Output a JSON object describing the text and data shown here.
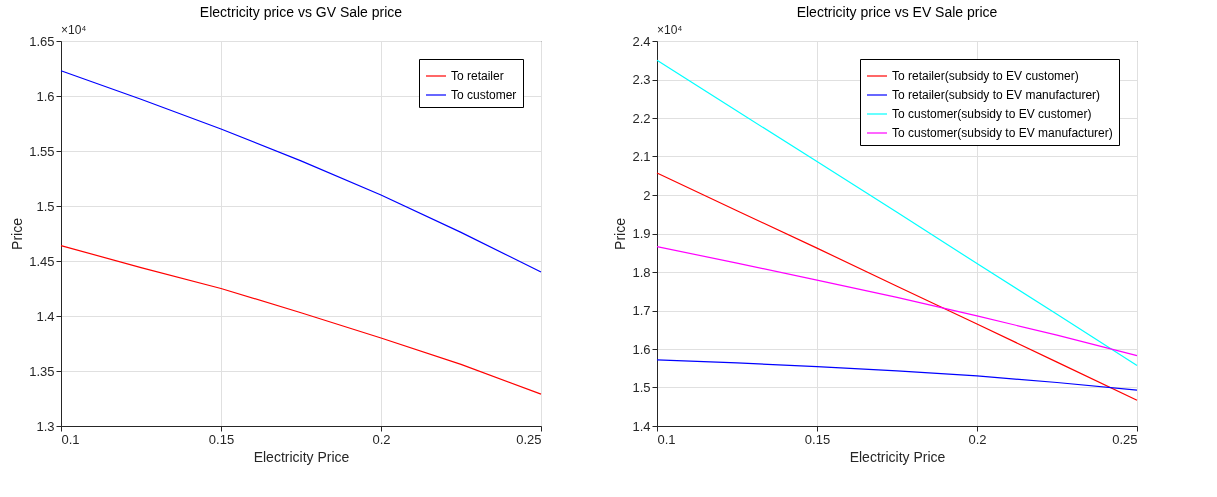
{
  "chart_data": [
    {
      "type": "line",
      "title": "Electricity price vs GV Sale price",
      "xlabel": "Electricity Price",
      "ylabel": "Price",
      "annotations": [
        "×10⁴"
      ],
      "x": [
        0.1,
        0.125,
        0.15,
        0.175,
        0.2,
        0.225,
        0.25
      ],
      "series": [
        {
          "name": "To retailer",
          "color": "#ff0000",
          "values": [
            1.464,
            1.444,
            1.425,
            1.403,
            1.38,
            1.356,
            1.329
          ]
        },
        {
          "name": "To customer",
          "color": "#0000ff",
          "values": [
            1.623,
            1.597,
            1.57,
            1.541,
            1.51,
            1.476,
            1.44
          ]
        }
      ],
      "xlim": [
        0.1,
        0.25
      ],
      "xticks": [
        0.1,
        0.15,
        0.2,
        0.25
      ],
      "ylim": [
        1.3,
        1.65
      ],
      "yticks": [
        1.3,
        1.35,
        1.4,
        1.45,
        1.5,
        1.55,
        1.6,
        1.65
      ],
      "grid": true,
      "legend": "top right",
      "marker": "none",
      "line_style": "solid"
    },
    {
      "type": "line",
      "title": "Electricity price vs EV Sale price",
      "xlabel": "Electricity Price",
      "ylabel": "Price",
      "annotations": [
        "×10⁴"
      ],
      "x": [
        0.1,
        0.125,
        0.15,
        0.175,
        0.2,
        0.225,
        0.25
      ],
      "series": [
        {
          "name": "To retailer(subsidy to EV customer)",
          "color": "#ff0000",
          "values": [
            2.057,
            1.959,
            1.862,
            1.763,
            1.665,
            1.566,
            1.467
          ]
        },
        {
          "name": "To retailer(subsidy to EV manufacturer)",
          "color": "#0000ff",
          "values": [
            1.572,
            1.564,
            1.554,
            1.543,
            1.53,
            1.513,
            1.493
          ]
        },
        {
          "name": "To customer(subsidy to EV customer)",
          "color": "#00ffff",
          "values": [
            2.35,
            2.218,
            2.087,
            1.955,
            1.822,
            1.69,
            1.557
          ]
        },
        {
          "name": "To customer(subsidy to EV manufacturer)",
          "color": "#ff00ff",
          "values": [
            1.866,
            1.823,
            1.779,
            1.734,
            1.686,
            1.636,
            1.583
          ]
        }
      ],
      "xlim": [
        0.1,
        0.25
      ],
      "xticks": [
        0.1,
        0.15,
        0.2,
        0.25
      ],
      "ylim": [
        1.4,
        2.4
      ],
      "yticks": [
        1.4,
        1.5,
        1.6,
        1.7,
        1.8,
        1.9,
        2.0,
        2.1,
        2.2,
        2.3,
        2.4
      ],
      "grid": true,
      "legend": "top right",
      "marker": "none",
      "line_style": "solid"
    }
  ]
}
